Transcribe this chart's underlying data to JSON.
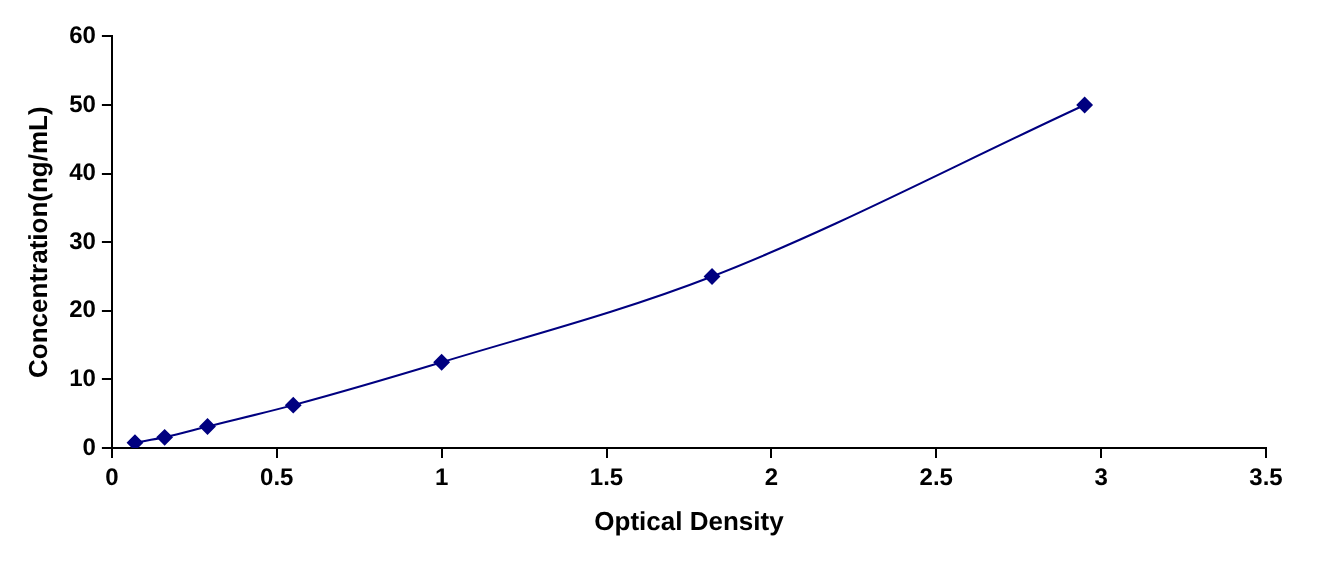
{
  "chart_data": {
    "type": "line",
    "xlabel": "Optical Density",
    "ylabel": "Concentration(ng/mL)",
    "x": [
      0.07,
      0.16,
      0.29,
      0.55,
      1.0,
      1.82,
      2.95
    ],
    "series": [
      {
        "color": "#000080",
        "values": [
          0.78,
          1.56,
          3.13,
          6.25,
          12.5,
          25,
          50
        ]
      }
    ],
    "xlim": [
      0,
      3.5
    ],
    "xticks": [
      0,
      0.5,
      1,
      1.5,
      2,
      2.5,
      3,
      3.5
    ],
    "ylim": [
      0,
      60
    ],
    "yticks": [
      0,
      10,
      20,
      30,
      40,
      50,
      60
    ],
    "grid": false,
    "legend": false,
    "marker": "diamond",
    "line_style": "solid"
  }
}
